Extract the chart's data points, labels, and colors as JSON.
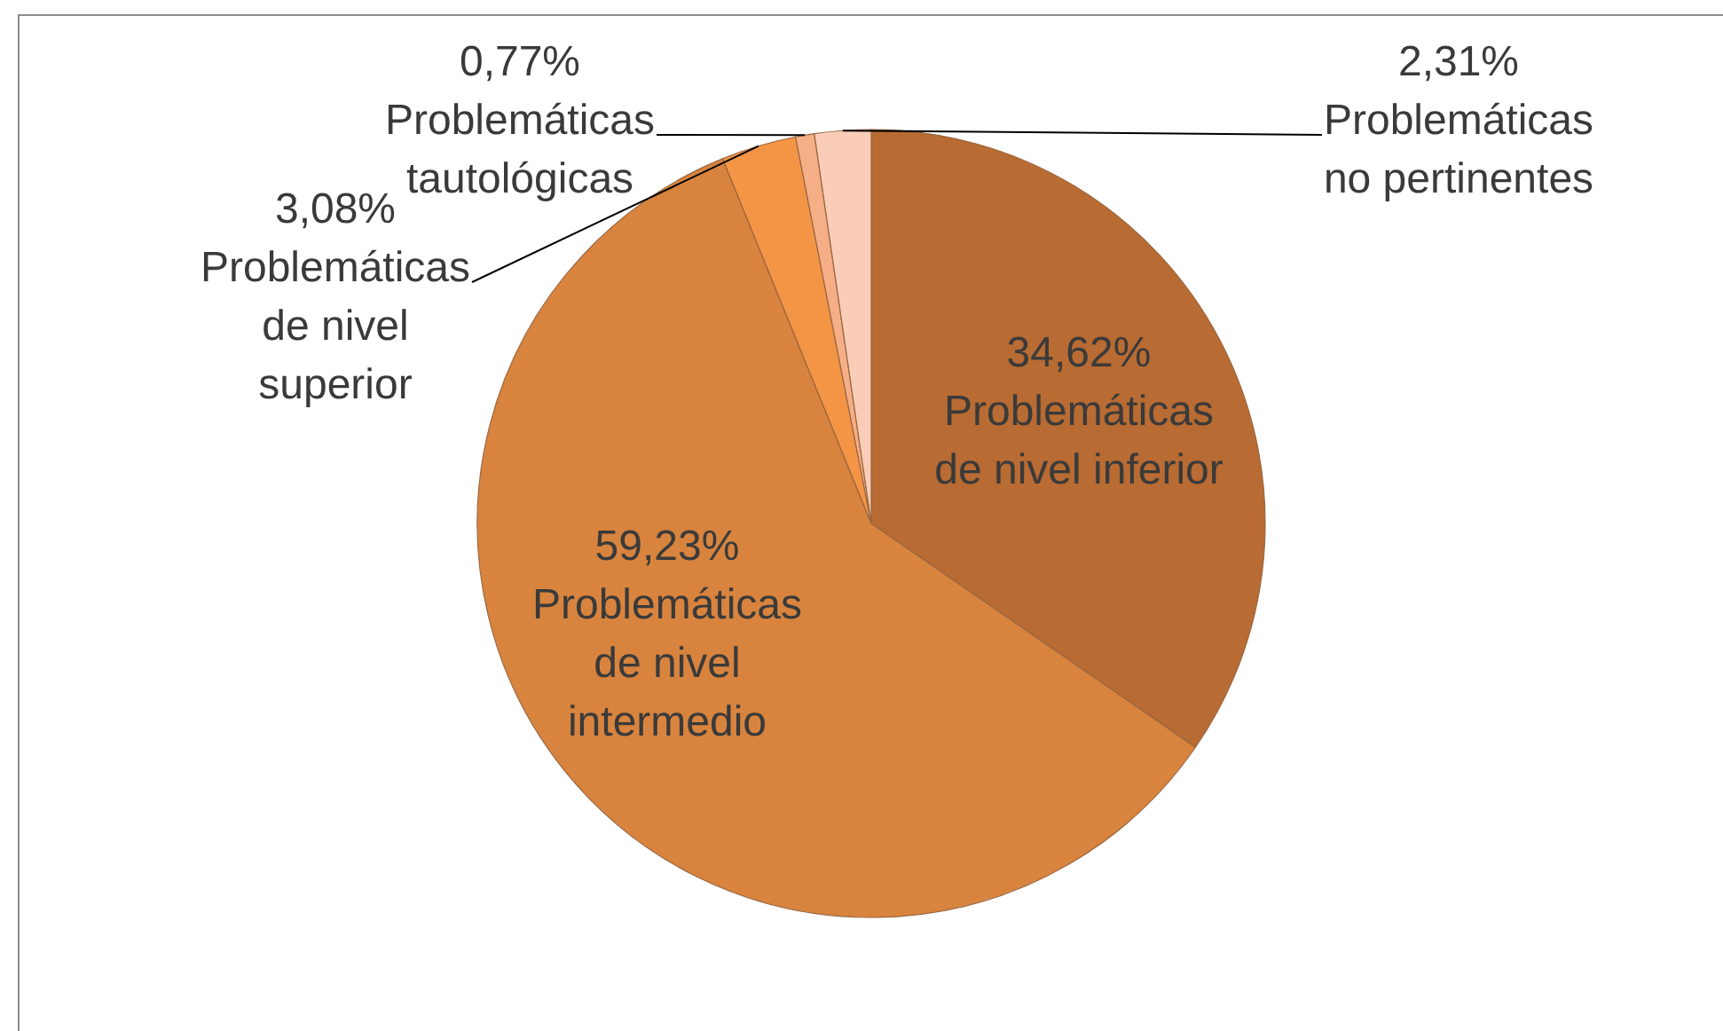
{
  "chart_data": {
    "type": "pie",
    "categories": [
      "Problemáticas de nivel inferior",
      "Problemáticas de nivel intermedio",
      "Problemáticas de nivel superior",
      "Problemáticas tautológicas",
      "Problemáticas no pertinentes"
    ],
    "values": [
      34.62,
      59.23,
      3.08,
      0.77,
      2.31
    ],
    "value_labels": [
      "34,62%",
      "59,23%",
      "3,08%",
      "0,77%",
      "2,31%"
    ],
    "colors": [
      "#b86b32",
      "#d8843e",
      "#f49546",
      "#f5ae86",
      "#f9cdb7"
    ]
  }
}
